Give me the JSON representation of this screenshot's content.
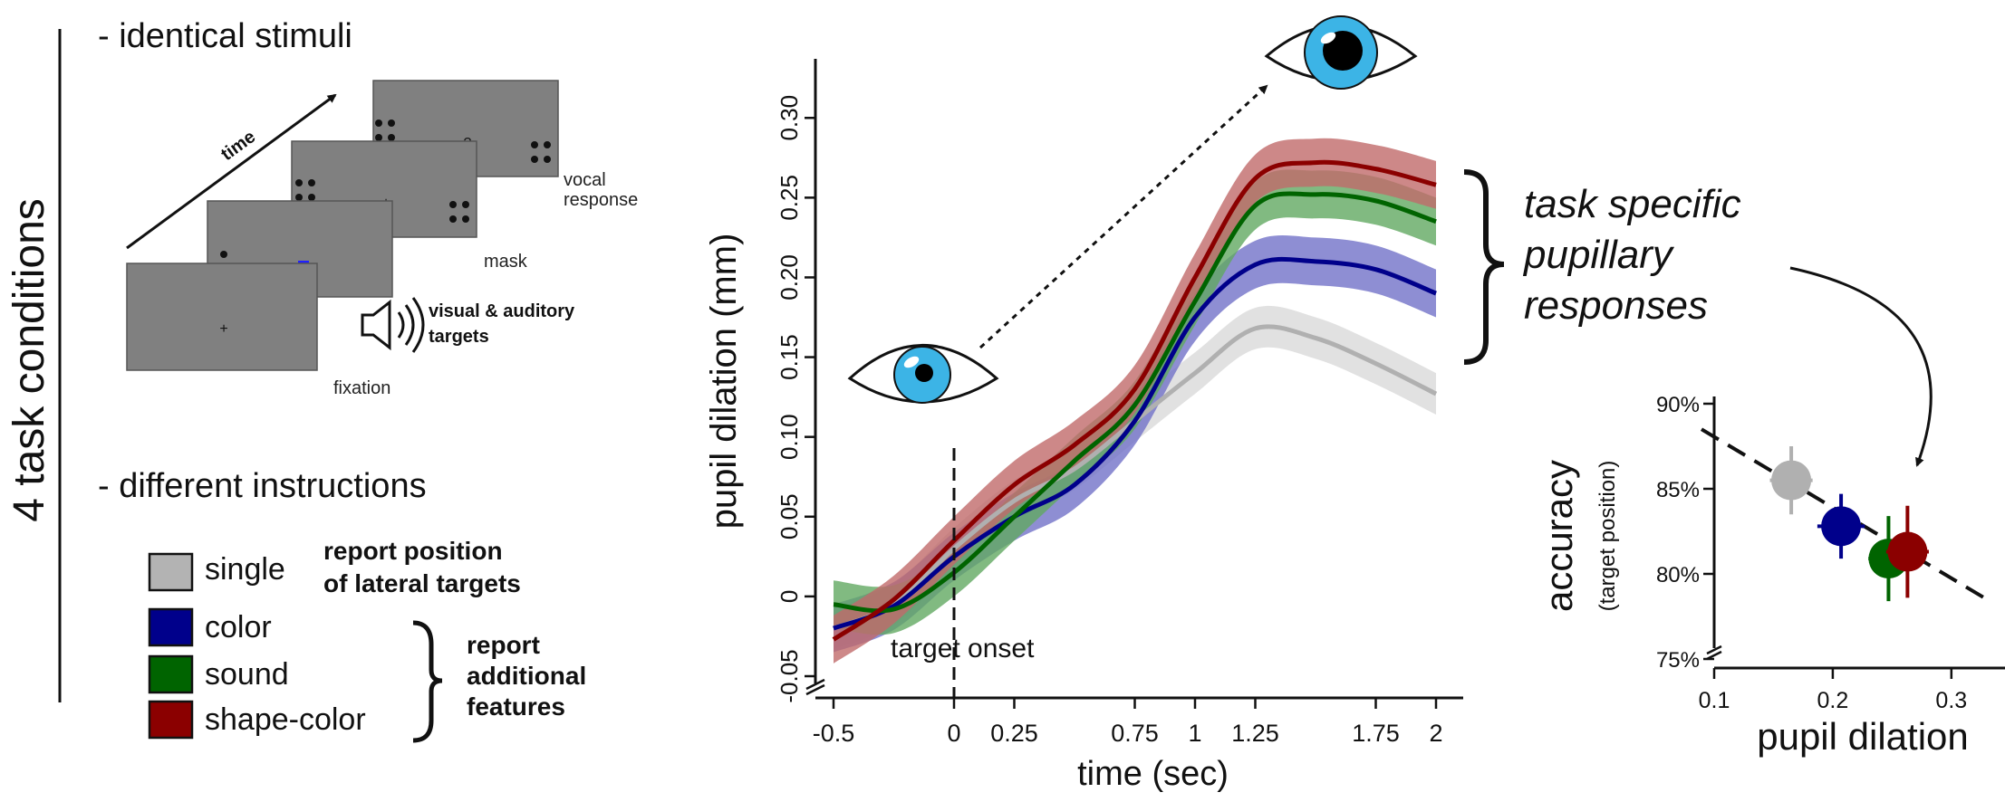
{
  "left_panel": {
    "vertical_title": "4 task conditions",
    "stimuli_heading": "- identical stimuli",
    "time_label": "time",
    "screen_labels": {
      "fixation": "fixation",
      "targets": [
        "visual & auditory",
        "targets"
      ],
      "mask": "mask",
      "vocal": [
        "vocal",
        "response"
      ],
      "question": "?"
    },
    "instructions_heading": "- different instructions",
    "conditions": [
      {
        "label": "single",
        "color": "#b3b3b3"
      },
      {
        "label": "color",
        "color": "#00008b"
      },
      {
        "label": "sound",
        "color": "#006400"
      },
      {
        "label": "shape-color",
        "color": "#8b0000"
      }
    ],
    "report_lateral": [
      "report position",
      "of lateral targets"
    ],
    "report_additional": [
      "report",
      "additional",
      "features"
    ]
  },
  "chart_data": [
    {
      "type": "line",
      "title": "",
      "xlabel": "time (sec)",
      "ylabel": "pupil dilation (mm)",
      "xlim": [
        -0.5,
        2
      ],
      "ylim": [
        -0.05,
        0.32
      ],
      "x_ticks": [
        -0.5,
        0,
        0.25,
        0.75,
        1,
        1.25,
        1.75,
        2
      ],
      "x_tick_labels": [
        "-0.5",
        "0",
        "0.25",
        "0.75",
        "1",
        "1.25",
        "1.75",
        "2"
      ],
      "y_ticks": [
        -0.05,
        0,
        0.05,
        0.1,
        0.15,
        0.2,
        0.25,
        0.3
      ],
      "y_tick_labels": [
        "-0.05",
        "0",
        "0.05",
        "0.10",
        "0.15",
        "0.20",
        "0.25",
        "0.30"
      ],
      "annotation": "target onset",
      "annotation_x": 0,
      "x": [
        -0.5,
        -0.25,
        0,
        0.25,
        0.5,
        0.75,
        1,
        1.25,
        1.5,
        1.75,
        2
      ],
      "series": [
        {
          "name": "single",
          "color": "#b0b0b0",
          "band_color": "#d9d9d9",
          "band_halfwidth": 0.013,
          "values": [
            -0.02,
            -0.005,
            0.03,
            0.06,
            0.08,
            0.11,
            0.14,
            0.168,
            0.162,
            0.146,
            0.127
          ]
        },
        {
          "name": "color",
          "color": "#00008b",
          "band_color": "#7272c8",
          "band_halfwidth": 0.015,
          "values": [
            -0.02,
            -0.006,
            0.025,
            0.05,
            0.07,
            0.11,
            0.175,
            0.208,
            0.21,
            0.205,
            0.19
          ]
        },
        {
          "name": "sound",
          "color": "#006400",
          "band_color": "#62a962",
          "band_halfwidth": 0.015,
          "values": [
            -0.005,
            -0.008,
            0.015,
            0.05,
            0.085,
            0.12,
            0.185,
            0.245,
            0.252,
            0.248,
            0.235
          ]
        },
        {
          "name": "shape-color",
          "color": "#8b0000",
          "band_color": "#c06a6a",
          "band_halfwidth": 0.015,
          "values": [
            -0.027,
            -0.002,
            0.035,
            0.07,
            0.095,
            0.13,
            0.2,
            0.262,
            0.272,
            0.268,
            0.258
          ]
        }
      ]
    },
    {
      "type": "scatter",
      "title": "",
      "xlabel": "pupil dilation",
      "ylabel": "accuracy",
      "ylabel_sub": "(target position)",
      "xlim": [
        0.1,
        0.32
      ],
      "ylim": [
        75,
        90
      ],
      "x_ticks": [
        0.1,
        0.2,
        0.3
      ],
      "x_tick_labels": [
        "0.1",
        "0.2",
        "0.3"
      ],
      "y_ticks": [
        75,
        80,
        85,
        90
      ],
      "y_tick_labels": [
        "75%",
        "80%",
        "85%",
        "90%"
      ],
      "trend_line": {
        "x": [
          0.1,
          0.33
        ],
        "y": [
          88.5,
          78.5
        ]
      },
      "points": [
        {
          "name": "single",
          "x": 0.165,
          "y": 85.5,
          "xerr": 0.018,
          "yerr": 2.0,
          "color": "#b0b0b0"
        },
        {
          "name": "color",
          "x": 0.207,
          "y": 82.8,
          "xerr": 0.02,
          "yerr": 1.9,
          "color": "#00008b"
        },
        {
          "name": "sound",
          "x": 0.247,
          "y": 80.9,
          "xerr": 0.017,
          "yerr": 2.5,
          "color": "#006400"
        },
        {
          "name": "shape-color",
          "x": 0.263,
          "y": 81.3,
          "xerr": 0.018,
          "yerr": 2.7,
          "color": "#8b0000"
        }
      ]
    }
  ],
  "right_annotation": [
    "task specific",
    "pupillary",
    "responses"
  ],
  "icons": {
    "eye": "eye-icon",
    "speaker": "speaker-icon"
  }
}
